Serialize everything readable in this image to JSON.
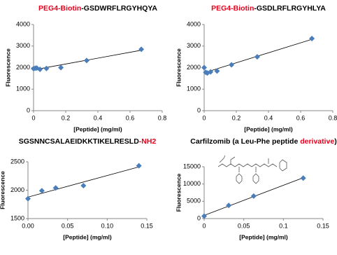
{
  "chart_data": [
    {
      "type": "scatter",
      "title": [
        {
          "text": "PEG4-Biotin",
          "color": "#e8001c"
        },
        {
          "text": "-GSDWRFLRGYHQYA",
          "color": "#000000"
        }
      ],
      "x_label": "[Peptide] (mg/ml)",
      "y_label": "Fluorescence",
      "color": "#4a7ebb",
      "trendline": true,
      "x": [
        0,
        0.01,
        0.02,
        0.04,
        0.08,
        0.17,
        0.33,
        0.67
      ],
      "values": [
        1950,
        1970,
        1980,
        1920,
        1960,
        2000,
        2330,
        2850
      ],
      "xlim": [
        0,
        0.8
      ],
      "xticks": [
        0,
        0.2,
        0.4,
        0.6,
        0.8
      ],
      "ylim": [
        0,
        4000
      ],
      "yticks": [
        0,
        1000,
        2000,
        3000,
        4000
      ]
    },
    {
      "type": "scatter",
      "title": [
        {
          "text": "PEG4-Biotin",
          "color": "#e8001c"
        },
        {
          "text": "-GSDLRFLRGYHLYA",
          "color": "#000000"
        }
      ],
      "x_label": "[Peptide] (mg/ml)",
      "y_label": "Fluorescence",
      "color": "#4a7ebb",
      "trendline": true,
      "x": [
        0,
        0.01,
        0.02,
        0.04,
        0.08,
        0.17,
        0.33,
        0.67
      ],
      "values": [
        2000,
        1780,
        1750,
        1800,
        1840,
        2130,
        2500,
        3350
      ],
      "xlim": [
        0,
        0.8
      ],
      "xticks": [
        0,
        0.2,
        0.4,
        0.6,
        0.8
      ],
      "ylim": [
        0,
        4000
      ],
      "yticks": [
        0,
        1000,
        2000,
        3000,
        4000
      ]
    },
    {
      "type": "scatter",
      "title": [
        {
          "text": "SGSNNCSALAEIDKKTIKELRESLD",
          "color": "#000000"
        },
        {
          "text": "-NH2",
          "color": "#e8001c"
        }
      ],
      "x_label": "[Peptide] (mg/ml)",
      "y_label": "Fluorescence",
      "color": "#4a7ebb",
      "trendline": true,
      "x": [
        0,
        0.0175,
        0.035,
        0.07,
        0.14
      ],
      "values": [
        1850,
        1990,
        2040,
        2080,
        2430
      ],
      "xlim": [
        0,
        0.15
      ],
      "xticks": [
        {
          "value": 0,
          "label": "0.00"
        },
        0.05,
        {
          "value": 0.1,
          "label": "0.10"
        },
        0.15
      ],
      "ylim": [
        1500,
        2500
      ],
      "yticks": [
        1500,
        2000,
        2500
      ]
    },
    {
      "type": "scatter",
      "title": [
        {
          "text": "Carfilzomib (a Leu-Phe peptide ",
          "color": "#000000"
        },
        {
          "text": "derivative",
          "color": "#e8001c"
        },
        {
          "text": ")",
          "color": "#000000"
        }
      ],
      "x_label": "[Peptide] (mg/ml)",
      "y_label": "Fluorescence",
      "color": "#4a7ebb",
      "trendline": true,
      "x": [
        0,
        0.031,
        0.0625,
        0.125
      ],
      "values": [
        700,
        3800,
        6500,
        11700
      ],
      "xlim": [
        0,
        0.15
      ],
      "xticks": [
        0,
        0.05,
        0.1,
        0.15
      ],
      "ylim": [
        0,
        15000
      ],
      "yticks": [
        0,
        5000,
        10000,
        15000
      ]
    }
  ]
}
